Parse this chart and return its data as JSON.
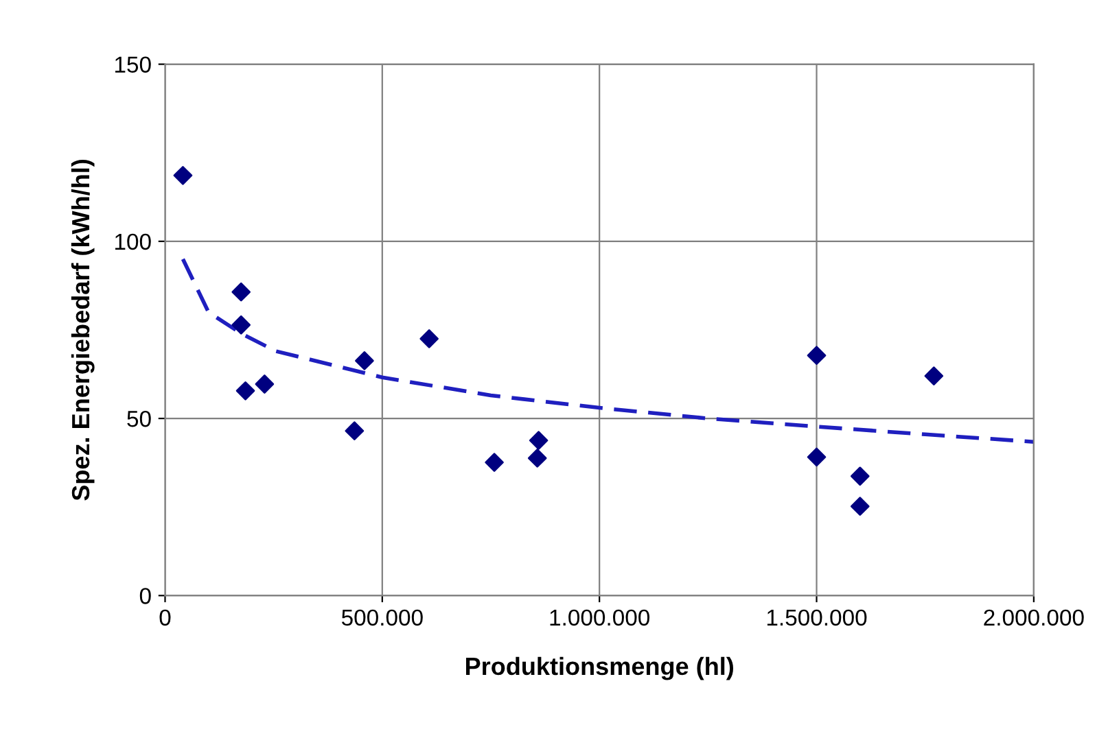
{
  "chart_data": {
    "type": "scatter",
    "xlabel": "Produktionsmenge (hl)",
    "ylabel": "Spez. Energiebedarf (kWh/hl)",
    "xlim": [
      0,
      2000000
    ],
    "ylim": [
      0,
      150
    ],
    "xticks": [
      {
        "value": 0,
        "label": "0"
      },
      {
        "value": 500000,
        "label": "500.000"
      },
      {
        "value": 1000000,
        "label": "1.000.000"
      },
      {
        "value": 1500000,
        "label": "1.500.000"
      },
      {
        "value": 2000000,
        "label": "2.000.000"
      }
    ],
    "yticks": [
      0,
      50,
      100,
      150
    ],
    "grid": true,
    "legend": false,
    "series": [
      {
        "marker": "diamond",
        "color": "#000080",
        "x": [
          41000,
          175000,
          175000,
          185000,
          229000,
          436000,
          459000,
          608000,
          758000,
          857000,
          860000,
          1500000,
          1500000,
          1600000,
          1600000,
          1770000
        ],
        "values": [
          118.6,
          85.7,
          76.4,
          57.8,
          59.7,
          46.5,
          66.3,
          72.5,
          37.6,
          38.8,
          43.8,
          67.8,
          39.1,
          33.7,
          25.2,
          62
        ]
      },
      {
        "type": "line",
        "line_style": "dashed",
        "color": "#1f1fbf",
        "x": [
          41000,
          100000,
          175000,
          255000,
          500000,
          750000,
          1000000,
          1250000,
          1500000,
          1750000,
          2000000
        ],
        "values": [
          95,
          80,
          74,
          69,
          61.6,
          56.5,
          53,
          50,
          47.7,
          45.5,
          43.4
        ]
      }
    ]
  }
}
